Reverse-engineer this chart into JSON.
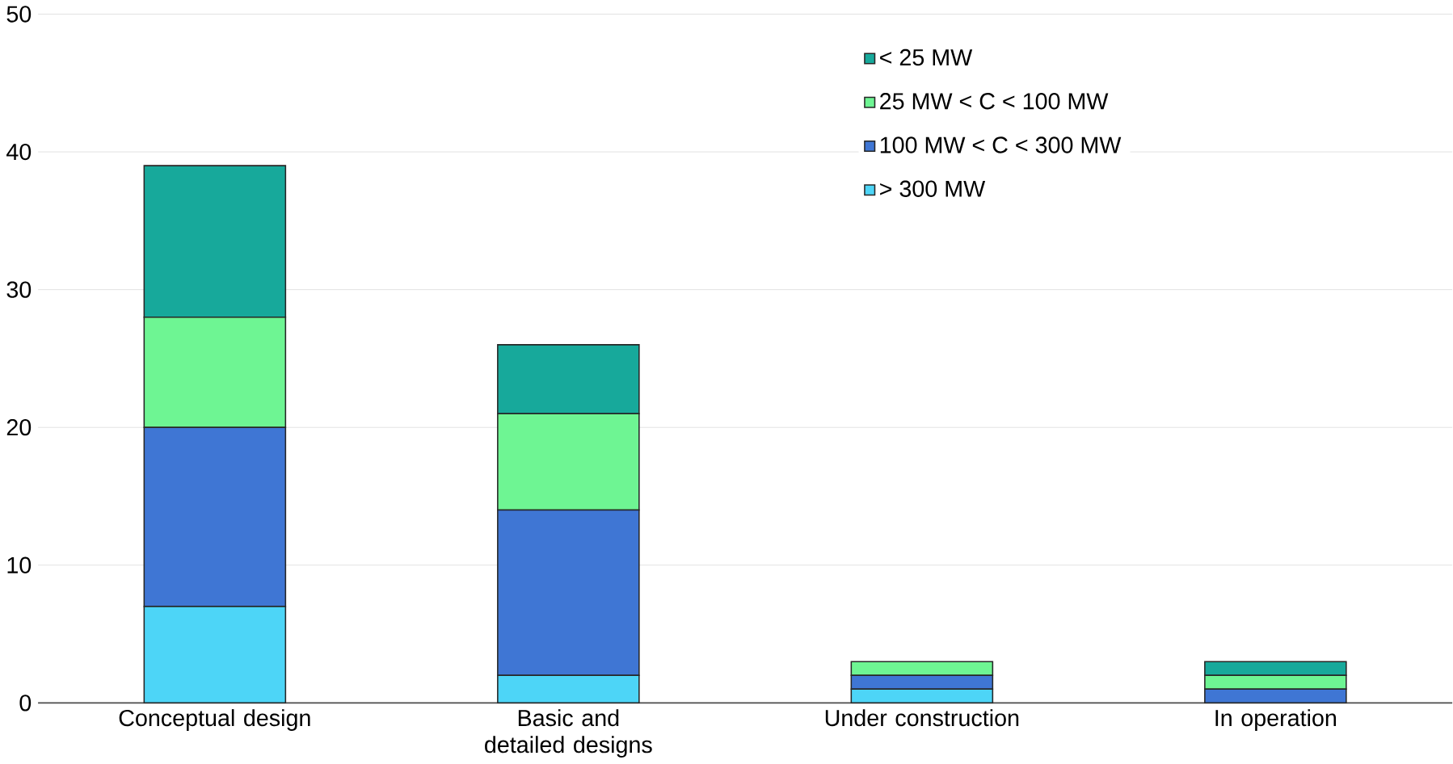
{
  "chart_data": {
    "type": "bar",
    "stacked": true,
    "categories": [
      "Conceptual design",
      "Basic and detailed designs",
      "Under construction",
      "In operation"
    ],
    "series": [
      {
        "name": "> 300 MW",
        "color": "#4dd5f7",
        "values": [
          7,
          2,
          1,
          0
        ]
      },
      {
        "name": "100 MW < C < 300 MW",
        "color": "#3f76d4",
        "values": [
          13,
          12,
          1,
          1
        ]
      },
      {
        "name": "25 MW < C < 100 MW",
        "color": "#6ef593",
        "values": [
          8,
          7,
          1,
          1
        ]
      },
      {
        "name": "< 25 MW",
        "color": "#17a99b",
        "values": [
          11,
          5,
          0,
          1
        ]
      }
    ],
    "ylim": [
      0,
      50
    ],
    "yticks": [
      0,
      10,
      20,
      30,
      40,
      50
    ],
    "grid": "y",
    "legend": "top right"
  }
}
